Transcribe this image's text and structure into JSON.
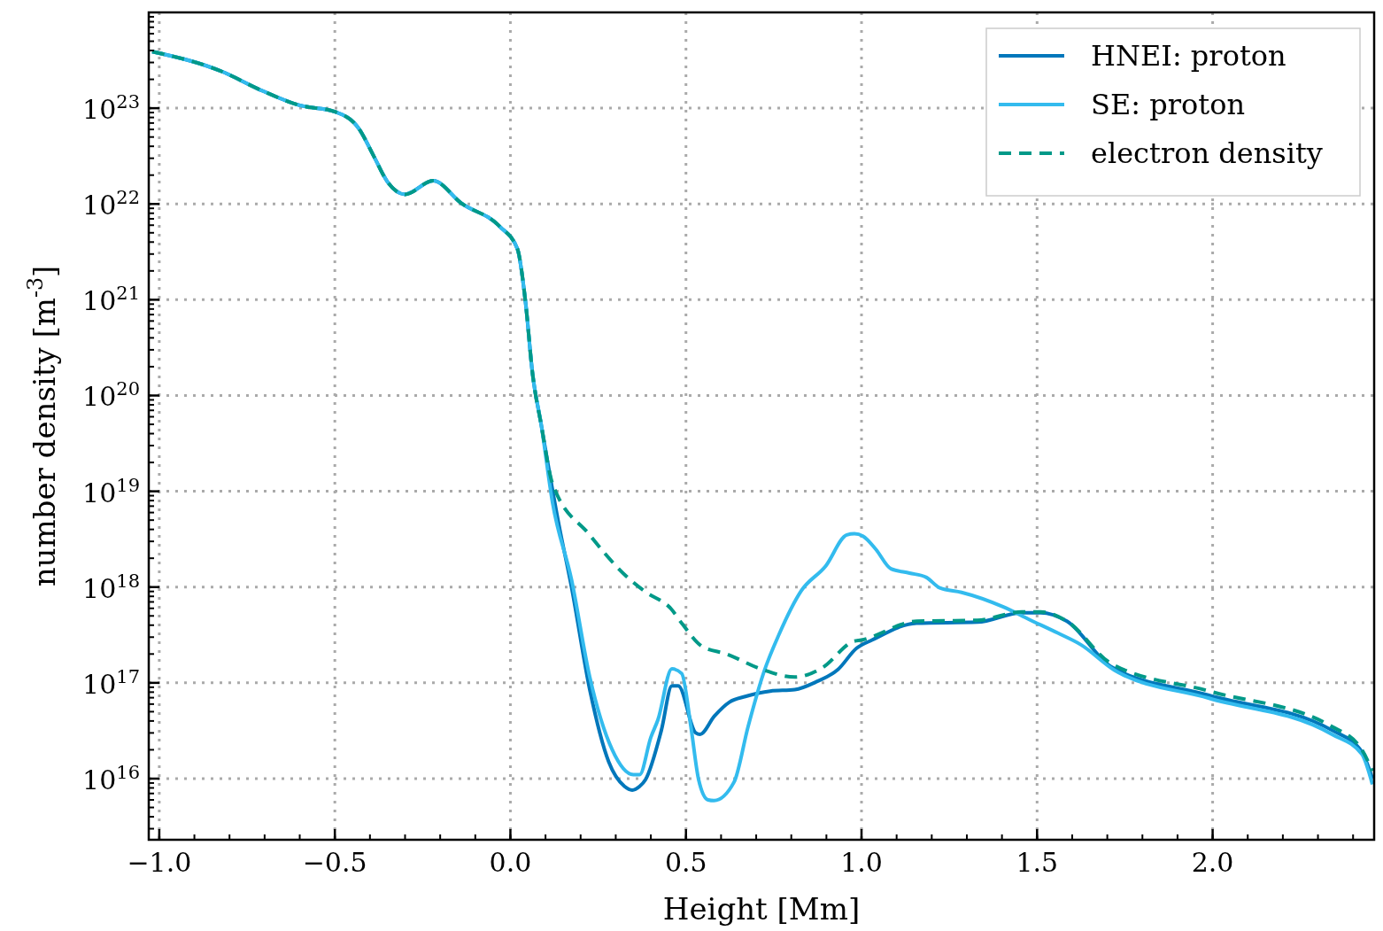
{
  "chart_data": {
    "type": "line",
    "xlabel": "Height [Mm]",
    "ylabel": "number density [m$^{-3}$]",
    "log": "y",
    "grid": true,
    "legend": "top right",
    "line_style": "solid",
    "marker": "none",
    "xlim": [
      -1.03,
      2.46
    ],
    "ylim": [
      2300000000000000.0,
      1e+24
    ],
    "xticks": [
      {
        "value": -1,
        "label": "−1.0"
      },
      {
        "value": -0.5,
        "label": "−0.5"
      },
      {
        "value": 0,
        "label": "0.0"
      },
      {
        "value": 0.5,
        "label": "0.5"
      },
      {
        "value": 1,
        "label": "1.0"
      },
      {
        "value": 1.5,
        "label": "1.5"
      },
      {
        "value": 2,
        "label": "2.0"
      }
    ],
    "yticks": [
      {
        "value": 1e+16,
        "label": "10$^{16}$"
      },
      {
        "value": 1e+17,
        "label": "10$^{17}$"
      },
      {
        "value": 1e+18,
        "label": "10$^{18}$"
      },
      {
        "value": 1e+19,
        "label": "10$^{19}$"
      },
      {
        "value": 1e+20,
        "label": "10$^{20}$"
      },
      {
        "value": 1e+21,
        "label": "10$^{21}$"
      },
      {
        "value": 1e+22,
        "label": "10$^{22}$"
      },
      {
        "value": 1e+23,
        "label": "10$^{23}$"
      }
    ],
    "series": [
      {
        "name": "HNEI: proton",
        "color": "#0077bb",
        "x": [
          -1.02,
          -0.82,
          -0.72,
          -0.6,
          -0.5,
          -0.43,
          -0.39,
          -0.35,
          -0.3,
          -0.22,
          -0.14,
          -0.03,
          0.02,
          0.043,
          0.063,
          0.088,
          0.138,
          0.174,
          0.226,
          0.28,
          0.325,
          0.347,
          0.368,
          0.385,
          0.43,
          0.46,
          0.478,
          0.528,
          0.54,
          0.581,
          0.624,
          0.669,
          0.74,
          0.81,
          0.87,
          0.933,
          0.986,
          1.03,
          1.157,
          1.33,
          1.457,
          1.51,
          1.585,
          1.71,
          1.99,
          2.34,
          2.425,
          2.455
        ],
        "values": [
          3.9e+23,
          2.4e+23,
          1.6e+23,
          1.07e+23,
          9.2e+22,
          6e+22,
          3.2e+22,
          1.7e+22,
          1.26e+22,
          1.75e+22,
          1.02e+22,
          5.8e+21,
          3.4e+21,
          9.5e+20,
          1.7e+20,
          4.9e+19,
          4.5e+18,
          1e+18,
          8.5e+16,
          1.5e+16,
          8300000000000000.0,
          7600000000000000.0,
          8300000000000000.0,
          9800000000000000.0,
          3.2e+16,
          9.3e+16,
          9.3e+16,
          3e+16,
          2.9e+16,
          4.5e+16,
          6.3e+16,
          7.2e+16,
          8.2e+16,
          8.5e+16,
          1.02e+17,
          1.38e+17,
          2.3e+17,
          2.8e+17,
          4.2e+17,
          4.3e+17,
          5.4e+17,
          5.4e+17,
          4.4e+17,
          1.48e+17,
          7.4e+16,
          3.2e+16,
          1.9e+16,
          1e+16
        ]
      },
      {
        "name": "SE: proton",
        "color": "#33bbee",
        "x": [
          -1.02,
          -0.82,
          -0.72,
          -0.6,
          -0.5,
          -0.43,
          -0.39,
          -0.35,
          -0.3,
          -0.22,
          -0.14,
          -0.03,
          0.02,
          0.043,
          0.063,
          0.088,
          0.12,
          0.174,
          0.226,
          0.29,
          0.35,
          0.368,
          0.4,
          0.42,
          0.46,
          0.488,
          0.514,
          0.536,
          0.563,
          0.58,
          0.637,
          0.677,
          0.722,
          0.765,
          0.828,
          0.898,
          0.958,
          0.98,
          1.004,
          1.04,
          1.084,
          1.137,
          1.185,
          1.223,
          1.285,
          1.404,
          1.477,
          1.56,
          1.625,
          1.72,
          1.99,
          2.34,
          2.425,
          2.455
        ],
        "values": [
          3.9e+23,
          2.4e+23,
          1.6e+23,
          1.07e+23,
          9.2e+22,
          6e+22,
          3.2e+22,
          1.7e+22,
          1.26e+22,
          1.75e+22,
          1.02e+22,
          5.8e+21,
          3.4e+21,
          9.5e+20,
          1.7e+20,
          4.9e+19,
          7.6e+18,
          1.2e+18,
          1.15e+17,
          2e+16,
          1.1e+16,
          1.1e+16,
          2.7e+16,
          4.1e+16,
          1.4e+17,
          1.25e+17,
          3.5e+16,
          9800000000000000.0,
          6000000000000000.0,
          5900000000000000.0,
          9200000000000000.0,
          3.5e+16,
          1.3e+17,
          3.2e+17,
          9.1e+17,
          1.66e+18,
          3.5e+18,
          3.6e+18,
          3.4e+18,
          2.5e+18,
          1.55e+18,
          1.4e+18,
          1.26e+18,
          9.8e+17,
          8.8e+17,
          6.2e+17,
          4.6e+17,
          3.3e+17,
          2.5e+17,
          1.36e+17,
          6.9e+16,
          2.9e+16,
          1.8e+16,
          8700000000000000.0
        ]
      },
      {
        "name": "electron density",
        "color": "#009988",
        "line_style": "dashed",
        "x": [
          -1.02,
          -0.82,
          -0.72,
          -0.6,
          -0.5,
          -0.43,
          -0.39,
          -0.35,
          -0.3,
          -0.22,
          -0.14,
          -0.03,
          0.02,
          0.043,
          0.063,
          0.088,
          0.12,
          0.226,
          0.33,
          0.385,
          0.458,
          0.49,
          0.546,
          0.616,
          0.712,
          0.81,
          0.89,
          0.976,
          1.0,
          1.157,
          1.33,
          1.457,
          1.51,
          1.585,
          1.71,
          1.99,
          2.34,
          2.425,
          2.455
        ],
        "values": [
          3.9e+23,
          2.4e+23,
          1.6e+23,
          1.07e+23,
          9.2e+22,
          6e+22,
          3.2e+22,
          1.7e+22,
          1.26e+22,
          1.75e+22,
          1.02e+22,
          5.8e+21,
          3.4e+21,
          9.5e+20,
          1.7e+20,
          4.9e+19,
          1.2e+19,
          3.5e+18,
          1.3e+18,
          8.9e+17,
          5.9e+17,
          4.1e+17,
          2.4e+17,
          2e+17,
          1.4e+17,
          1.15e+17,
          1.45e+17,
          2.7e+17,
          2.8e+17,
          4.4e+17,
          4.5e+17,
          5.5e+17,
          5.5e+17,
          4.4e+17,
          1.6e+17,
          8.2e+16,
          3.5e+16,
          2e+16,
          1.2e+16
        ]
      }
    ]
  }
}
